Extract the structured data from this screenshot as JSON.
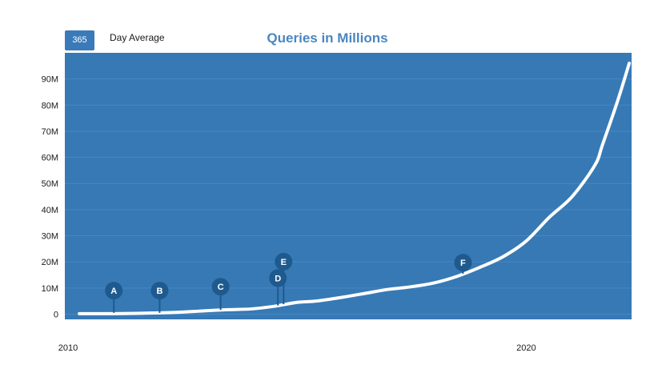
{
  "controls": {
    "average_value": "365",
    "average_label": "Day Average"
  },
  "colors": {
    "plot_background": "#3679b5",
    "line": "#ffffff",
    "marker": "#1f5a8e",
    "gridline": "#4a88c2",
    "title": "#4a86c1"
  },
  "chart_data": {
    "type": "line",
    "title": "Queries in Millions",
    "xlabel": "",
    "ylabel": "",
    "x_ticks": [
      "2010",
      "2020"
    ],
    "y_ticks": [
      "0",
      "10M",
      "20M",
      "30M",
      "40M",
      "50M",
      "60M",
      "70M",
      "80M",
      "90M"
    ],
    "y_tick_values": [
      0,
      10,
      20,
      30,
      40,
      50,
      60,
      70,
      80,
      90
    ],
    "ylim": [
      -2,
      100
    ],
    "xlim": [
      "2010-01-01",
      "2022-05-15"
    ],
    "grid": true,
    "series": [
      {
        "points": [
          [
            "2010-04-01",
            0.2
          ],
          [
            "2011-01-01",
            0.2
          ],
          [
            "2011-07-01",
            0.3
          ],
          [
            "2012-01-01",
            0.5
          ],
          [
            "2012-07-01",
            0.8
          ],
          [
            "2013-01-01",
            1.3
          ],
          [
            "2013-07-01",
            1.7
          ],
          [
            "2014-01-01",
            2.0
          ],
          [
            "2014-07-01",
            3.0
          ],
          [
            "2015-01-01",
            4.5
          ],
          [
            "2015-06-01",
            5.0
          ],
          [
            "2016-01-01",
            6.5
          ],
          [
            "2016-07-01",
            8.0
          ],
          [
            "2017-01-01",
            9.5
          ],
          [
            "2017-07-01",
            10.5
          ],
          [
            "2018-01-01",
            12.0
          ],
          [
            "2018-07-01",
            14.5
          ],
          [
            "2019-01-01",
            18.0
          ],
          [
            "2019-07-01",
            22.0
          ],
          [
            "2020-01-01",
            28.0
          ],
          [
            "2020-07-01",
            37.0
          ],
          [
            "2021-01-01",
            45.0
          ],
          [
            "2021-07-01",
            57.0
          ],
          [
            "2021-09-01",
            65.0
          ],
          [
            "2022-01-01",
            82.0
          ],
          [
            "2022-04-01",
            96.0
          ]
        ]
      }
    ],
    "annotations": [
      {
        "label": "A",
        "date": "2011-01-01",
        "value": 0.5,
        "height": 9
      },
      {
        "label": "B",
        "date": "2012-01-01",
        "value": 0.5,
        "height": 9
      },
      {
        "label": "C",
        "date": "2013-05-01",
        "value": 1.6,
        "height": 10.5
      },
      {
        "label": "D",
        "date": "2014-08-01",
        "value": 3.3,
        "height": 13.8
      },
      {
        "label": "E",
        "date": "2014-09-15",
        "value": 3.8,
        "height": 20.1
      },
      {
        "label": "F",
        "date": "2018-08-15",
        "value": 15.5,
        "height": 19.7
      }
    ]
  }
}
